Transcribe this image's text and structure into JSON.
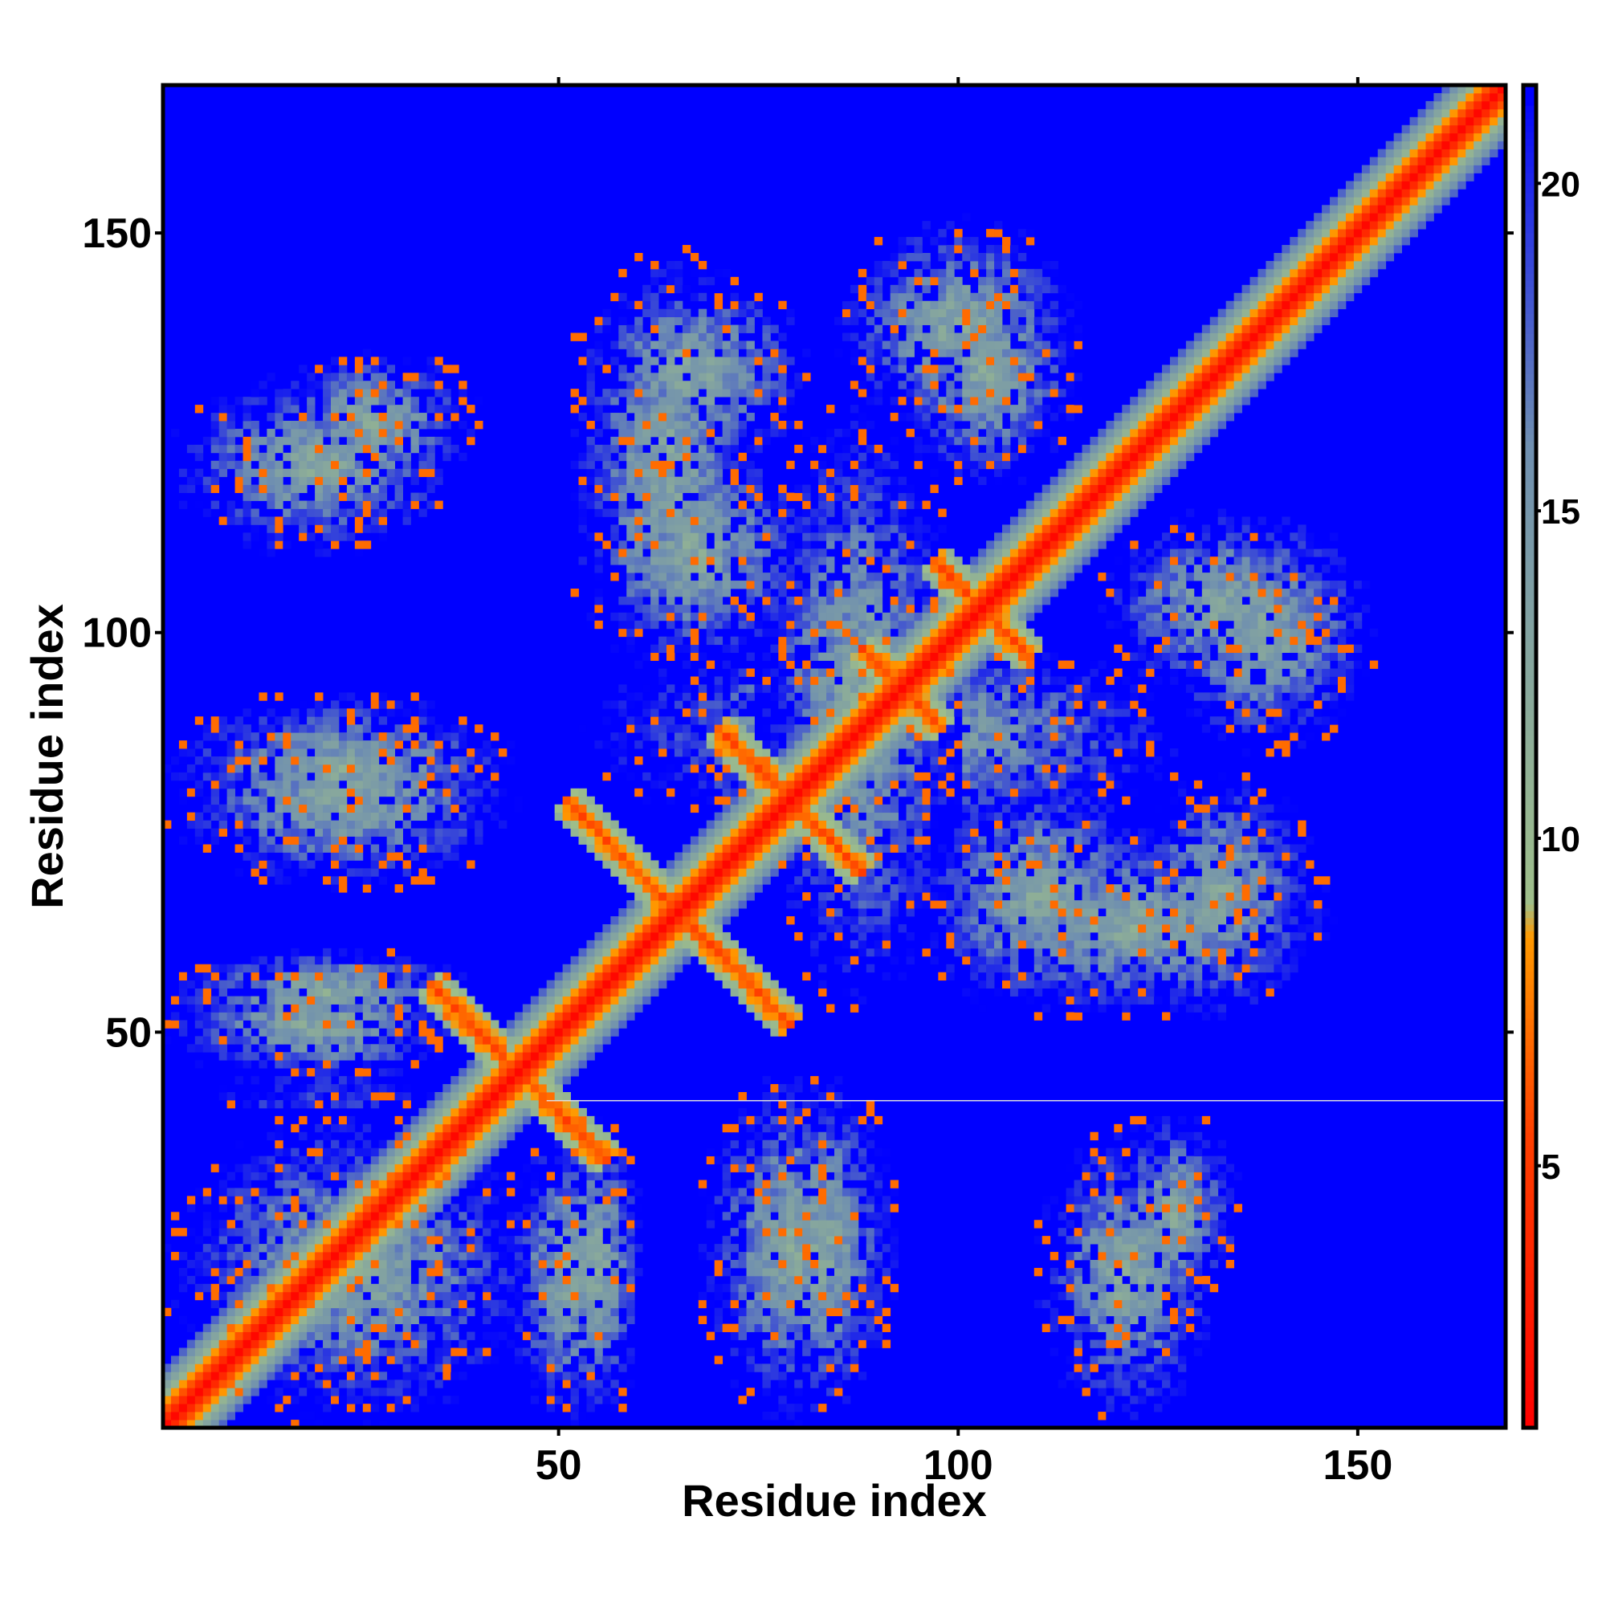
{
  "chart_data": {
    "type": "heatmap",
    "title": "",
    "xlabel": "Residue index",
    "ylabel": "Residue index",
    "n_residues": 168,
    "xlim": [
      1,
      168
    ],
    "ylim": [
      1,
      168
    ],
    "x_ticks": [
      50,
      100,
      150
    ],
    "y_ticks": [
      50,
      100,
      150
    ],
    "colorbar": {
      "ticks": [
        5,
        10,
        15,
        20
      ],
      "range": [
        1,
        21.5
      ],
      "colors": [
        {
          "value": 1,
          "color": "#ff0000"
        },
        {
          "value": 5.5,
          "color": "#ff4000"
        },
        {
          "value": 8.5,
          "color": "#ff9900"
        },
        {
          "value": 9,
          "color": "#9fbf8a"
        },
        {
          "value": 16,
          "color": "#6f8fb0"
        },
        {
          "value": 21.5,
          "color": "#0000ff"
        }
      ],
      "cutoff_color": "#0000ff"
    },
    "features": {
      "diagonal_band_width": 7,
      "helix_crossings": [
        {
          "center": [
            45,
            45
          ],
          "arm_length": 11
        },
        {
          "center": [
            65,
            65
          ],
          "arm_length": 14
        },
        {
          "center": [
            79,
            79
          ],
          "arm_length": 9
        },
        {
          "center": [
            93,
            93
          ],
          "arm_length": 5
        },
        {
          "center": [
            103,
            103
          ],
          "arm_length": 6
        }
      ],
      "contact_regions": [
        {
          "x": [
            1,
            48
          ],
          "y": [
            1,
            40
          ]
        },
        {
          "x": [
            44,
            58
          ],
          "y": [
            1,
            38
          ]
        },
        {
          "x": [
            68,
            90
          ],
          "y": [
            1,
            45
          ]
        },
        {
          "x": [
            110,
            132
          ],
          "y": [
            1,
            38
          ]
        },
        {
          "x": [
            1,
            40
          ],
          "y": [
            50,
            60
          ]
        },
        {
          "x": [
            1,
            45
          ],
          "y": [
            74,
            92
          ]
        },
        {
          "x": [
            14,
            40
          ],
          "y": [
            118,
            135
          ]
        },
        {
          "x": [
            52,
            75
          ],
          "y": [
            95,
            148
          ]
        },
        {
          "x": [
            75,
            100
          ],
          "y": [
            52,
            130
          ]
        },
        {
          "x": [
            85,
            115
          ],
          "y": [
            125,
            152
          ]
        },
        {
          "x": [
            95,
            125
          ],
          "y": [
            52,
            82
          ]
        },
        {
          "x": [
            120,
            145
          ],
          "y": [
            52,
            82
          ]
        },
        {
          "x": [
            118,
            148
          ],
          "y": [
            92,
            115
          ]
        }
      ],
      "missing_row_y": 41
    }
  }
}
